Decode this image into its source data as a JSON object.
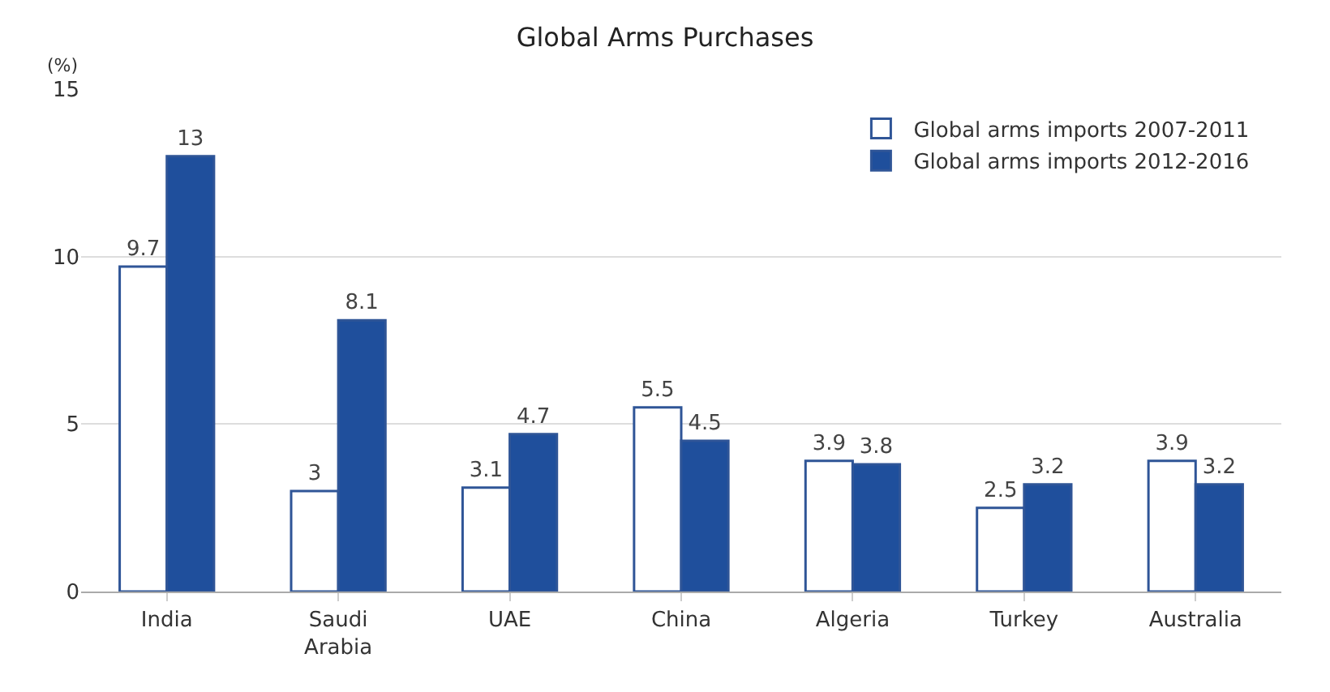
{
  "chart_data": {
    "type": "bar",
    "title": "Global Arms Purchases",
    "ylabel": "(%)",
    "categories": [
      "India",
      "Saudi Arabia",
      "UAE",
      "China",
      "Algeria",
      "Turkey",
      "Australia"
    ],
    "series": [
      {
        "name": "Global arms imports 2007-2011",
        "color": "#ffffff",
        "values": [
          9.7,
          3,
          3.1,
          5.5,
          3.9,
          2.5,
          3.9
        ]
      },
      {
        "name": "Global arms imports 2012-2016",
        "color": "#1f4f9c",
        "values": [
          13,
          8.1,
          4.7,
          4.5,
          3.8,
          3.2,
          3.2
        ]
      }
    ],
    "ylim": [
      0,
      15
    ],
    "yticks": [
      0,
      5,
      10,
      15
    ],
    "grid": "y",
    "legend": "top right",
    "data_labels": true
  }
}
